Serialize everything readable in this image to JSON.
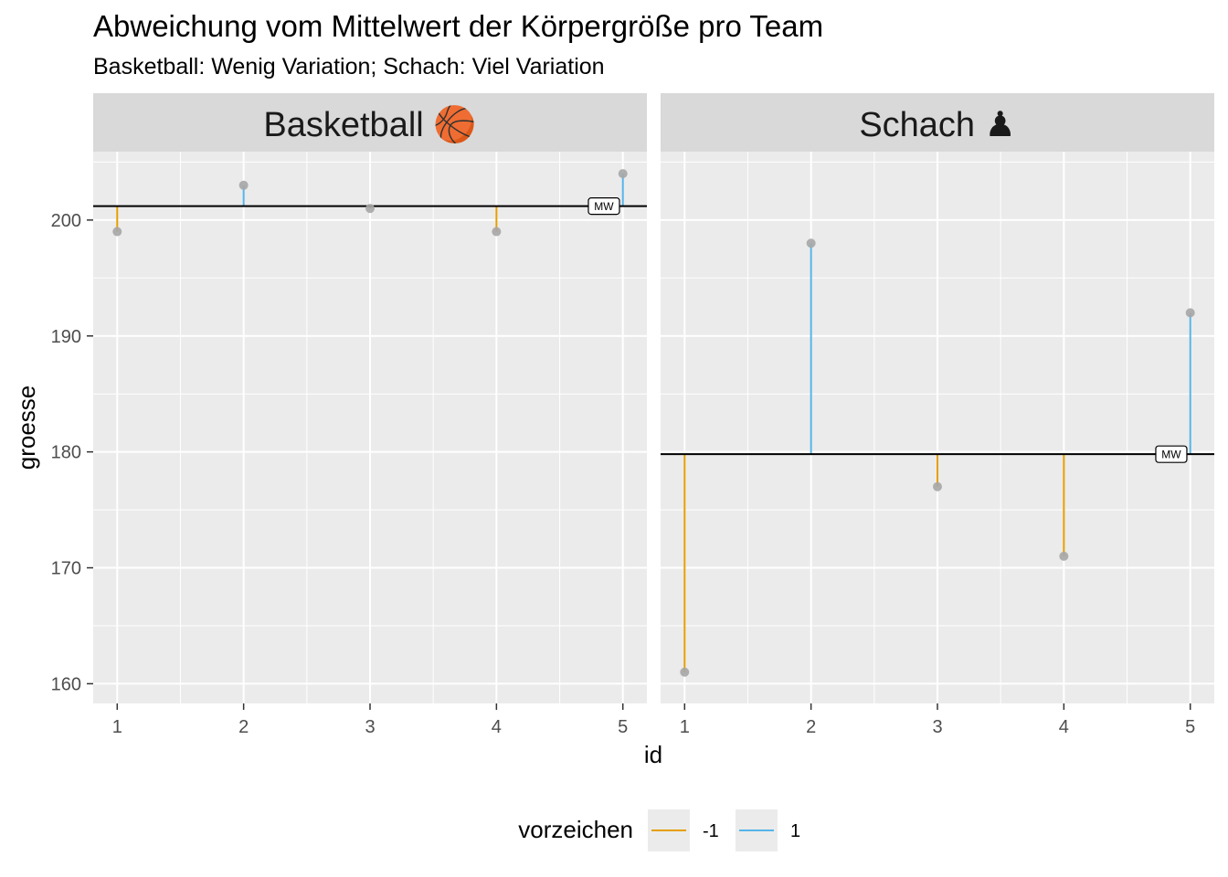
{
  "chart_data": {
    "type": "lollipop",
    "title": "Abweichung vom Mittelwert der Körpergröße pro Team",
    "subtitle": "Basketball: Wenig Variation; Schach: Viel Variation",
    "xlabel": "id",
    "ylabel": "groesse",
    "ylim": [
      158.3,
      205.9
    ],
    "xlim": [
      0.81,
      5.19
    ],
    "y_ticks": [
      160,
      170,
      180,
      190,
      200
    ],
    "x_ticks": [
      1,
      2,
      3,
      4,
      5
    ],
    "grid": true,
    "facets": [
      {
        "label": "Basketball 🏀",
        "mean": 201.2,
        "mean_label": "MW",
        "points": [
          {
            "id": 1,
            "groesse": 199,
            "vorzeichen": "-1"
          },
          {
            "id": 2,
            "groesse": 203,
            "vorzeichen": "1"
          },
          {
            "id": 3,
            "groesse": 201,
            "vorzeichen": "-1"
          },
          {
            "id": 4,
            "groesse": 199,
            "vorzeichen": "-1"
          },
          {
            "id": 5,
            "groesse": 204,
            "vorzeichen": "1"
          }
        ]
      },
      {
        "label": "Schach ♟",
        "mean": 179.8,
        "mean_label": "MW",
        "points": [
          {
            "id": 1,
            "groesse": 161,
            "vorzeichen": "-1"
          },
          {
            "id": 2,
            "groesse": 198,
            "vorzeichen": "1"
          },
          {
            "id": 3,
            "groesse": 177,
            "vorzeichen": "-1"
          },
          {
            "id": 4,
            "groesse": 171,
            "vorzeichen": "-1"
          },
          {
            "id": 5,
            "groesse": 192,
            "vorzeichen": "1"
          }
        ]
      }
    ],
    "legend": {
      "title": "vorzeichen",
      "position": "bottom",
      "items": [
        {
          "label": "-1",
          "color": "#E69F00"
        },
        {
          "label": "1",
          "color": "#56B4E9"
        }
      ]
    },
    "colors": {
      "panel_bg": "#EBEBEB",
      "strip_bg": "#D9D9D9",
      "grid": "#FFFFFF",
      "point": "#A6A6A6",
      "mean_line": "#000000"
    }
  }
}
